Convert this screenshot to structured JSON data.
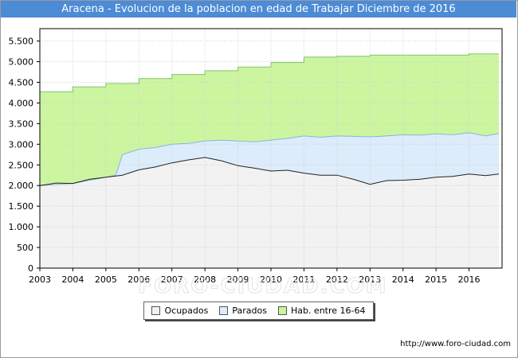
{
  "title": "Aracena - Evolucion de la poblacion en edad de Trabajar Diciembre de 2016",
  "footer_url": "http://www.foro-ciudad.com",
  "watermark": "FORO-CIUDAD.COM",
  "colors": {
    "title_bg": "#4c8bd6",
    "hab": "#ccf5a0",
    "hab_line": "#7fc66a",
    "parados": "#dcecfb",
    "parados_line": "#8ab4df",
    "ocupados": "#f2f2f2",
    "ocupados_line": "#222222"
  },
  "chart_data": {
    "type": "area",
    "xlabel": "",
    "ylabel": "",
    "xlim": [
      2003,
      2017
    ],
    "ylim": [
      0,
      5800
    ],
    "y_ticks": [
      0,
      500,
      1000,
      1500,
      2000,
      2500,
      3000,
      3500,
      4000,
      4500,
      5000,
      5500
    ],
    "y_tick_labels": [
      "0",
      "500",
      "1.000",
      "1.500",
      "2.000",
      "2.500",
      "3.000",
      "3.500",
      "4.000",
      "4.500",
      "5.000",
      "5.500"
    ],
    "x_ticks": [
      2003,
      2004,
      2005,
      2006,
      2007,
      2008,
      2009,
      2010,
      2011,
      2012,
      2013,
      2014,
      2015,
      2016
    ],
    "x_tick_labels": [
      "2003",
      "2004",
      "2005",
      "2006",
      "2007",
      "2008",
      "2009",
      "2010",
      "2011",
      "2012",
      "2013",
      "2014",
      "2015",
      "2016"
    ],
    "grid": true,
    "legend": [
      {
        "name": "Ocupados",
        "color": "#f2f2f2"
      },
      {
        "name": "Parados",
        "color": "#dcecfb"
      },
      {
        "name": "Hab. entre 16-64",
        "color": "#ccf5a0"
      }
    ],
    "series": [
      {
        "name": "Hab. entre 16-64",
        "x": [
          2003.0,
          2004.0,
          2005.0,
          2006.0,
          2007.0,
          2008.0,
          2009.0,
          2010.0,
          2011.0,
          2012.0,
          2013.0,
          2014.0,
          2015.0,
          2016.0
        ],
        "values": [
          4270,
          4390,
          4470,
          4590,
          4690,
          4780,
          4870,
          4980,
          5110,
          5130,
          5160,
          5160,
          5160,
          5190
        ]
      },
      {
        "name": "Parados",
        "x": [
          2003.0,
          2004.0,
          2005.0,
          2005.3,
          2005.5,
          2006.0,
          2006.5,
          2007.0,
          2007.5,
          2008.0,
          2008.5,
          2009.0,
          2009.5,
          2010.0,
          2010.5,
          2011.0,
          2011.5,
          2012.0,
          2012.5,
          2013.0,
          2013.5,
          2014.0,
          2014.5,
          2015.0,
          2015.5,
          2016.0,
          2016.5,
          2016.9
        ],
        "values": [
          2000,
          2050,
          2200,
          2250,
          2750,
          2880,
          2920,
          3000,
          3020,
          3080,
          3100,
          3080,
          3060,
          3100,
          3140,
          3200,
          3170,
          3200,
          3190,
          3180,
          3200,
          3230,
          3220,
          3250,
          3230,
          3280,
          3200,
          3260
        ]
      },
      {
        "name": "Ocupados",
        "x": [
          2003.0,
          2003.5,
          2004.0,
          2004.5,
          2005.0,
          2005.5,
          2006.0,
          2006.5,
          2007.0,
          2007.5,
          2008.0,
          2008.5,
          2009.0,
          2009.5,
          2010.0,
          2010.5,
          2011.0,
          2011.5,
          2012.0,
          2012.5,
          2013.0,
          2013.5,
          2014.0,
          2014.5,
          2015.0,
          2015.5,
          2016.0,
          2016.5,
          2016.9
        ],
        "values": [
          2000,
          2060,
          2050,
          2150,
          2200,
          2250,
          2380,
          2450,
          2550,
          2620,
          2680,
          2600,
          2480,
          2420,
          2350,
          2370,
          2300,
          2250,
          2250,
          2150,
          2030,
          2120,
          2130,
          2150,
          2200,
          2220,
          2280,
          2240,
          2280
        ]
      }
    ]
  }
}
